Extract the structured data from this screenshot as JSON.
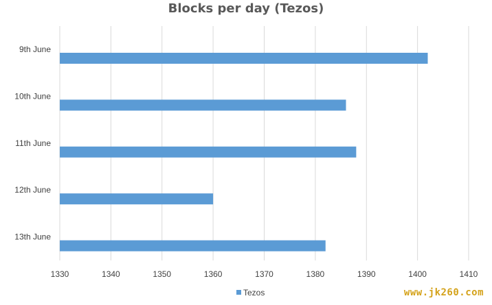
{
  "chart_data": {
    "type": "bar",
    "orientation": "horizontal",
    "title": "Blocks per day (Tezos)",
    "categories": [
      "9th June",
      "10th June",
      "11th June",
      "12th June",
      "13th June"
    ],
    "series": [
      {
        "name": "Tezos",
        "values": [
          1402,
          1386,
          1388,
          1360,
          1382
        ]
      }
    ],
    "xlim": [
      1330,
      1410
    ],
    "x_ticks": [
      1330,
      1340,
      1350,
      1360,
      1370,
      1380,
      1390,
      1400,
      1410
    ],
    "grid": true,
    "legend": "bottom",
    "colors": {
      "bar": "#5b9bd5",
      "grid": "#d9d9d9",
      "text": "#404040"
    }
  },
  "watermark": "www.jk260.com"
}
